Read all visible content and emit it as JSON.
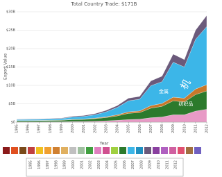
{
  "chart_data": {
    "type": "stacked_area",
    "title": "Total Country Trade: $171B",
    "y_label": "Export Value",
    "x_label": "Year",
    "x": [
      1995,
      1996,
      1997,
      1998,
      1999,
      2000,
      2001,
      2002,
      2003,
      2004,
      2005,
      2006,
      2007,
      2008,
      2009,
      2010,
      2011,
      2012
    ],
    "xlim": [
      1995,
      2012
    ],
    "xticks": [
      1995,
      1996,
      1997,
      1998,
      1999,
      2000,
      2001,
      2002,
      2003,
      2004,
      2005,
      2006,
      2007,
      2008,
      2009,
      2010,
      2011,
      2012
    ],
    "ylim": [
      0,
      30000000000
    ],
    "yticks": [
      {
        "value": 0,
        "label": "$0"
      },
      {
        "value": 5000000000,
        "label": "$5B"
      },
      {
        "value": 10000000000,
        "label": "$10B"
      },
      {
        "value": 15000000000,
        "label": "$15B"
      },
      {
        "value": 20000000000,
        "label": "$20B"
      },
      {
        "value": 25000000000,
        "label": "$25B"
      },
      {
        "value": 30000000000,
        "label": "$30B"
      }
    ],
    "grid": true,
    "series": [
      {
        "color": "#e89ac6",
        "values": [
          100000000,
          100000000,
          100000000,
          120000000,
          120000000,
          180000000,
          200000000,
          250000000,
          350000000,
          500000000,
          700000000,
          800000000,
          1200000000,
          1400000000,
          2000000000,
          2000000000,
          3000000000,
          3500000000
        ]
      },
      {
        "color": "#2c7a2c",
        "values": [
          300000000,
          300000000,
          320000000,
          350000000,
          380000000,
          500000000,
          550000000,
          700000000,
          900000000,
          1200000000,
          1700000000,
          1800000000,
          2600000000,
          2900000000,
          3800000000,
          3500000000,
          4500000000,
          5000000000
        ]
      },
      {
        "color": "#c8782a",
        "values": [
          50000000,
          50000000,
          60000000,
          60000000,
          70000000,
          100000000,
          100000000,
          150000000,
          200000000,
          300000000,
          400000000,
          450000000,
          700000000,
          800000000,
          1000000000,
          1000000000,
          1500000000,
          1700000000
        ]
      },
      {
        "color": "#3cb6e8",
        "values": [
          250000000,
          300000000,
          300000000,
          350000000,
          400000000,
          600000000,
          700000000,
          900000000,
          1350000000,
          2000000000,
          3000000000,
          3200000000,
          5400000000,
          5900000000,
          9500000000,
          8500000000,
          13500000000,
          15800000000
        ]
      },
      {
        "color": "#6b5a7b",
        "values": [
          100000000,
          100000000,
          120000000,
          120000000,
          130000000,
          220000000,
          250000000,
          300000000,
          400000000,
          500000000,
          700000000,
          750000000,
          1300000000,
          1500000000,
          2200000000,
          2000000000,
          2500000000,
          3000000000
        ]
      }
    ],
    "annotations": [
      "机",
      "金属",
      "纺织品"
    ]
  }
}
